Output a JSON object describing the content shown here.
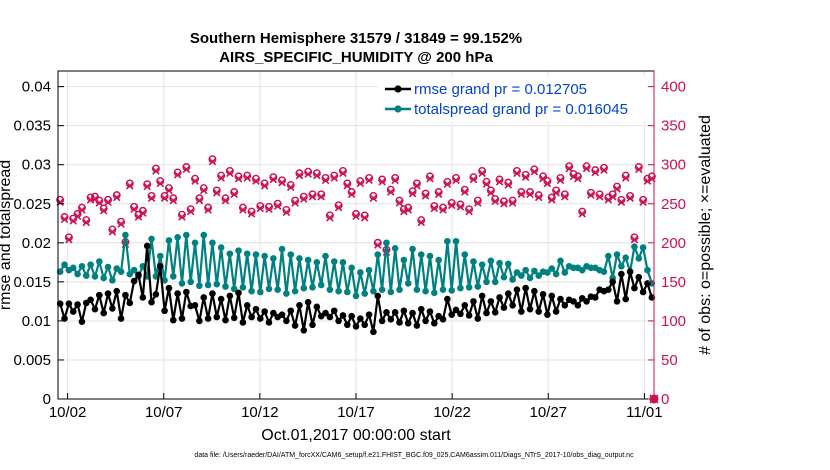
{
  "colors": {
    "rmse": "#000000",
    "spread": "#008080",
    "obs": "#cc1155",
    "legend_text": "#0000cc"
  },
  "chart_data": {
    "type": "line",
    "title": [
      "Southern Hemisphere 31579 / 31849 = 99.152%",
      "AIRS_SPECIFIC_HUMIDITY @ 200 hPa"
    ],
    "xlabel": "Oct.01,2017 00:00:00 start",
    "ylabel_left": "rmse and totalspread",
    "ylabel_right": "# of obs: o=possible; ×=evaluated",
    "x_tick_labels": [
      "10/02",
      "10/07",
      "10/12",
      "10/17",
      "10/22",
      "10/27",
      "11/01"
    ],
    "x_tick_days": [
      1,
      6,
      11,
      16,
      21,
      26,
      31
    ],
    "xlim": [
      0.5,
      31.5
    ],
    "y_left_ticks": [
      "0",
      "0.005",
      "0.01",
      "0.015",
      "0.02",
      "0.025",
      "0.03",
      "0.035",
      "0.04"
    ],
    "y_left_values": [
      0,
      0.005,
      0.01,
      0.015,
      0.02,
      0.025,
      0.03,
      0.035,
      0.04
    ],
    "ylim_left": [
      0,
      0.042
    ],
    "y_right_ticks": [
      "0",
      "50",
      "100",
      "150",
      "200",
      "250",
      "300",
      "350",
      "400"
    ],
    "y_right_values": [
      0,
      50,
      100,
      150,
      200,
      250,
      300,
      350,
      400
    ],
    "ylim_right": [
      0,
      420
    ],
    "series": [
      {
        "name": "rmse grand pr = 0.012705",
        "values": [
          0.0122,
          0.0103,
          0.0122,
          0.0112,
          0.0121,
          0.0099,
          0.0123,
          0.0127,
          0.0115,
          0.0133,
          0.011,
          0.0135,
          0.0116,
          0.0138,
          0.0103,
          0.0133,
          0.0123,
          0.0151,
          0.0159,
          0.013,
          0.0196,
          0.0124,
          0.0134,
          0.017,
          0.0113,
          0.0142,
          0.0101,
          0.0135,
          0.0103,
          0.0137,
          0.0119,
          0.012,
          0.01,
          0.013,
          0.0103,
          0.0135,
          0.0105,
          0.0128,
          0.0101,
          0.0132,
          0.0104,
          0.0136,
          0.0098,
          0.012,
          0.0105,
          0.0115,
          0.0103,
          0.0112,
          0.0098,
          0.011,
          0.0105,
          0.0108,
          0.01,
          0.0113,
          0.0094,
          0.012,
          0.0088,
          0.0124,
          0.0095,
          0.0118,
          0.0106,
          0.011,
          0.0105,
          0.0113,
          0.01,
          0.0107,
          0.0095,
          0.0106,
          0.0093,
          0.0103,
          0.0095,
          0.0108,
          0.0086,
          0.0132,
          0.01,
          0.0111,
          0.0102,
          0.0111,
          0.0098,
          0.0113,
          0.0097,
          0.011,
          0.0094,
          0.0115,
          0.01,
          0.0112,
          0.0097,
          0.0106,
          0.0102,
          0.0128,
          0.0108,
          0.0114,
          0.0109,
          0.012,
          0.0107,
          0.0125,
          0.0103,
          0.0132,
          0.011,
          0.0125,
          0.0111,
          0.013,
          0.0117,
          0.0135,
          0.012,
          0.014,
          0.0112,
          0.0142,
          0.0115,
          0.0138,
          0.0112,
          0.0134,
          0.0108,
          0.0132,
          0.0112,
          0.0128,
          0.012,
          0.0127,
          0.0125,
          0.012,
          0.0129,
          0.0125,
          0.0131,
          0.013,
          0.014,
          0.0138,
          0.014,
          0.015,
          0.0125,
          0.016,
          0.0128,
          0.0163,
          0.0142,
          0.0156,
          0.0137,
          0.0148,
          0.013
        ]
      },
      {
        "name": "totalspread grand pr = 0.016045",
        "values": [
          0.0163,
          0.0172,
          0.0165,
          0.0168,
          0.016,
          0.017,
          0.0158,
          0.0172,
          0.0157,
          0.0176,
          0.0155,
          0.0169,
          0.0152,
          0.0167,
          0.0163,
          0.021,
          0.016,
          0.0165,
          0.0157,
          0.017,
          0.0157,
          0.0205,
          0.0157,
          0.0183,
          0.0152,
          0.0203,
          0.0157,
          0.0207,
          0.0148,
          0.021,
          0.015,
          0.02,
          0.0145,
          0.021,
          0.0146,
          0.02,
          0.0147,
          0.0194,
          0.0144,
          0.0186,
          0.0141,
          0.019,
          0.0143,
          0.0186,
          0.0138,
          0.0185,
          0.0137,
          0.0183,
          0.0141,
          0.018,
          0.014,
          0.0192,
          0.0135,
          0.0185,
          0.0138,
          0.018,
          0.0142,
          0.0178,
          0.0143,
          0.0175,
          0.0146,
          0.0183,
          0.014,
          0.0176,
          0.0138,
          0.0175,
          0.0137,
          0.0168,
          0.0132,
          0.0162,
          0.0135,
          0.0165,
          0.0138,
          0.0185,
          0.014,
          0.02,
          0.0137,
          0.0193,
          0.014,
          0.0178,
          0.0148,
          0.0192,
          0.014,
          0.0185,
          0.0138,
          0.0183,
          0.0136,
          0.0178,
          0.014,
          0.0202,
          0.0139,
          0.0202,
          0.0142,
          0.0185,
          0.0143,
          0.0176,
          0.0144,
          0.0172,
          0.015,
          0.0177,
          0.015,
          0.0174,
          0.0156,
          0.0173,
          0.0153,
          0.0162,
          0.0158,
          0.0165,
          0.0155,
          0.0164,
          0.0158,
          0.0163,
          0.0162,
          0.0167,
          0.016,
          0.0177,
          0.0162,
          0.017,
          0.0168,
          0.0168,
          0.0165,
          0.017,
          0.0168,
          0.0168,
          0.0165,
          0.0163,
          0.0183,
          0.0155,
          0.0185,
          0.017,
          0.0181,
          0.0163,
          0.0195,
          0.018,
          0.0194,
          0.0165,
          0.0148
        ]
      },
      {
        "name": "obs possible",
        "values": [
          255,
          233,
          207,
          231,
          237,
          245,
          229,
          258,
          259,
          254,
          244,
          255,
          217,
          261,
          227,
          201,
          276,
          246,
          236,
          241,
          275,
          260,
          295,
          279,
          260,
          270,
          257,
          290,
          236,
          297,
          243,
          282,
          257,
          270,
          245,
          307,
          267,
          286,
          257,
          292,
          265,
          285,
          245,
          286,
          240,
          282,
          247,
          276,
          246,
          284,
          250,
          280,
          242,
          274,
          254,
          289,
          259,
          291,
          262,
          289,
          262,
          283,
          235,
          286,
          248,
          292,
          276,
          265,
          237,
          279,
          235,
          283,
          260,
          200,
          281,
          191,
          268,
          283,
          254,
          243,
          245,
          266,
          276,
          229,
          263,
          285,
          247,
          265,
          245,
          278,
          251,
          283,
          249,
          268,
          243,
          284,
          254,
          292,
          278,
          267,
          256,
          281,
          253,
          277,
          254,
          292,
          265,
          287,
          265,
          294,
          261,
          285,
          279,
          258,
          267,
          283,
          262,
          298,
          288,
          285,
          240,
          298,
          264,
          293,
          262,
          296,
          258,
          262,
          272,
          255,
          286,
          260,
          207,
          297,
          255,
          282,
          285
        ]
      },
      {
        "name": "obs evaluated",
        "values": [
          252,
          230,
          204,
          228,
          234,
          242,
          226,
          255,
          256,
          251,
          241,
          252,
          214,
          258,
          224,
          198,
          273,
          243,
          233,
          238,
          272,
          257,
          292,
          276,
          257,
          267,
          254,
          287,
          233,
          294,
          240,
          279,
          254,
          267,
          242,
          304,
          264,
          283,
          254,
          289,
          262,
          282,
          242,
          283,
          237,
          279,
          244,
          273,
          243,
          281,
          247,
          277,
          239,
          271,
          251,
          286,
          256,
          288,
          259,
          286,
          259,
          280,
          232,
          283,
          245,
          289,
          273,
          262,
          234,
          276,
          232,
          280,
          257,
          197,
          278,
          188,
          265,
          280,
          251,
          240,
          242,
          263,
          273,
          226,
          260,
          282,
          244,
          262,
          242,
          275,
          248,
          280,
          246,
          265,
          240,
          281,
          251,
          289,
          275,
          264,
          253,
          278,
          250,
          274,
          251,
          289,
          262,
          284,
          262,
          291,
          258,
          282,
          276,
          255,
          264,
          280,
          259,
          295,
          285,
          282,
          237,
          295,
          261,
          290,
          259,
          293,
          255,
          259,
          269,
          252,
          283,
          257,
          204,
          294,
          252,
          279,
          282
        ]
      }
    ],
    "footnote": "data file: /Users/raeder/DAI/ATM_forcXX/CAM6_setup/f.e21.FHIST_BGC.f09_025.CAM6assim.011/Diags_NTrS_2017-10/obs_diag_output.nc"
  }
}
